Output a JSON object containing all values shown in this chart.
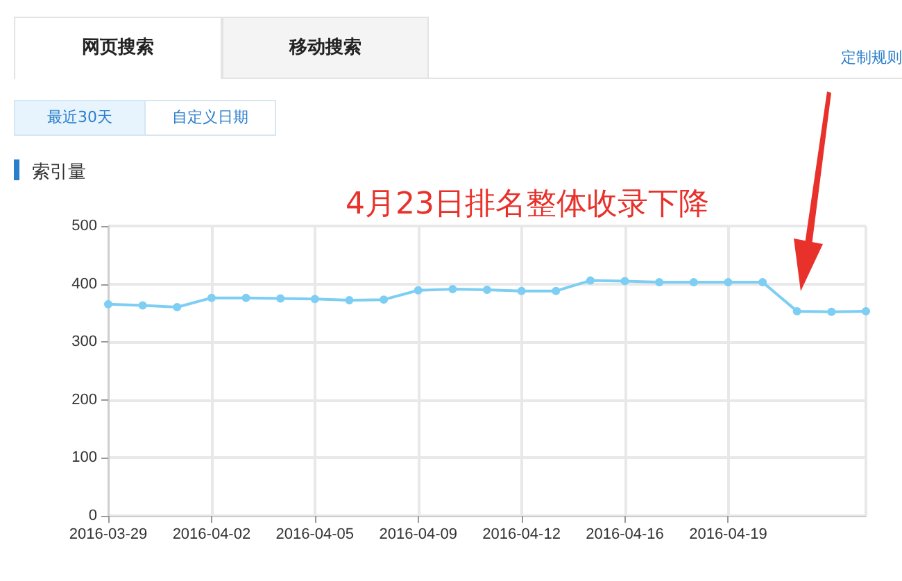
{
  "chart_data": {
    "type": "line",
    "title": "索引量",
    "annotations": [
      "网页搜索",
      "移动搜索",
      "定制规则",
      "最近30天",
      "自定义日期",
      "4月23日排名整体收录下降"
    ],
    "categories": [
      "2016-03-29",
      null,
      null,
      "2016-04-02",
      null,
      null,
      "2016-04-05",
      null,
      null,
      "2016-04-09",
      null,
      null,
      "2016-04-12",
      null,
      null,
      "2016-04-16",
      null,
      null,
      "2016-04-19",
      null,
      null,
      null,
      null
    ],
    "series": [
      {
        "color": "#7ecef4",
        "values": [
          365,
          363,
          360,
          376,
          376,
          375,
          374,
          372,
          373,
          389,
          391,
          390,
          388,
          388,
          406,
          405,
          403,
          403,
          403,
          403,
          353,
          352,
          353
        ]
      }
    ],
    "ylim": [
      0,
      500
    ],
    "yticks": [
      0,
      100,
      200,
      300,
      400,
      500
    ],
    "grid": true,
    "marker": "circle",
    "line_style": "solid"
  }
}
